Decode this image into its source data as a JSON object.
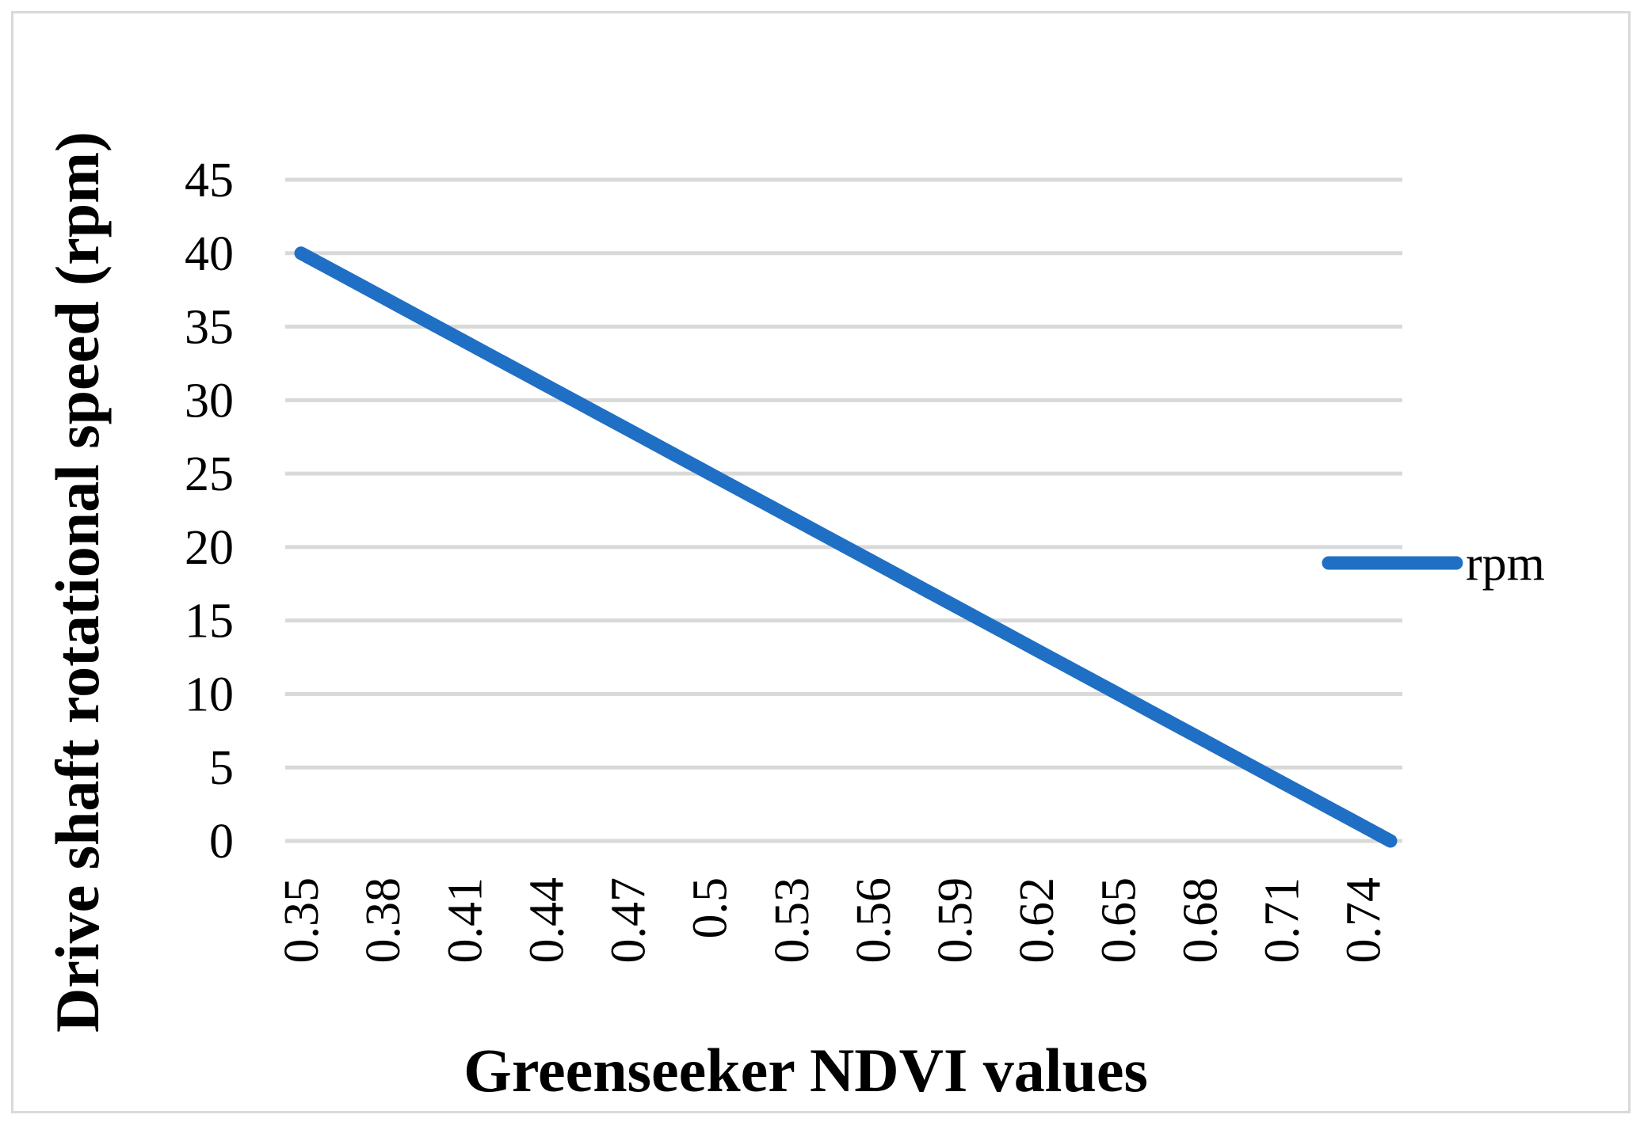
{
  "chart_data": {
    "type": "line",
    "title": "",
    "xlabel": "Greenseeker NDVI values",
    "ylabel": "Drive shaft rotational speed (rpm)",
    "x": [
      0.35,
      0.36,
      0.37,
      0.38,
      0.39,
      0.4,
      0.41,
      0.42,
      0.43,
      0.44,
      0.45,
      0.46,
      0.47,
      0.48,
      0.49,
      0.5,
      0.51,
      0.52,
      0.53,
      0.54,
      0.55,
      0.56,
      0.57,
      0.58,
      0.59,
      0.6,
      0.61,
      0.62,
      0.63,
      0.64,
      0.65,
      0.66,
      0.67,
      0.68,
      0.69,
      0.7,
      0.71,
      0.72,
      0.73,
      0.74,
      0.75
    ],
    "x_tick_labels": [
      "0.35",
      "0.38",
      "0.41",
      "0.44",
      "0.47",
      "0.5",
      "0.53",
      "0.56",
      "0.59",
      "0.62",
      "0.65",
      "0.68",
      "0.71",
      "0.74"
    ],
    "y_ticks": [
      "0",
      "5",
      "10",
      "15",
      "20",
      "25",
      "30",
      "35",
      "40",
      "45"
    ],
    "ylim": [
      0,
      45
    ],
    "grid": true,
    "legend_position": "right",
    "series": [
      {
        "name": "rpm",
        "color": "#1f6fc5",
        "values": [
          40,
          39,
          38,
          37,
          36,
          35,
          34,
          33,
          32,
          31,
          30,
          29,
          28,
          27,
          26,
          25,
          24,
          23,
          22,
          21,
          20,
          19,
          18,
          17,
          16,
          15,
          14,
          13,
          12,
          11,
          10,
          9,
          8,
          7,
          6,
          5,
          4,
          3,
          2,
          1,
          0
        ]
      }
    ]
  }
}
